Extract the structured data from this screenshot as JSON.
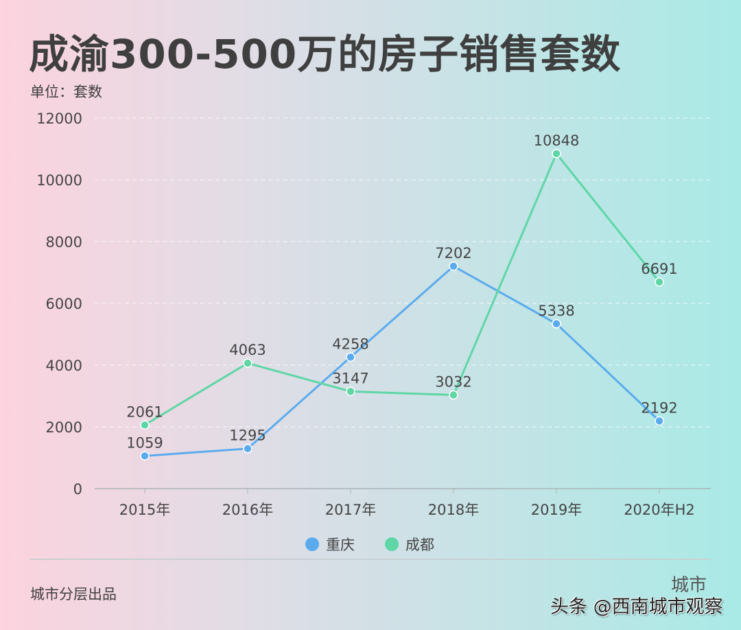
{
  "title": "成渝300-500万的房子销售套数",
  "unit_label": "单位：套数",
  "credit": "城市分层出品",
  "watermark": {
    "seal": "城市",
    "text": "头条 @西南城市观察"
  },
  "chart_data": {
    "type": "line",
    "title": "成渝300-500万的房子销售套数",
    "ylabel": "单位：套数",
    "categories": [
      "2015年",
      "2016年",
      "2017年",
      "2018年",
      "2019年",
      "2020年H2"
    ],
    "ylim": [
      0,
      12000
    ],
    "yticks": [
      0,
      2000,
      4000,
      6000,
      8000,
      10000,
      12000
    ],
    "grid": true,
    "legend_position": "bottom",
    "series": [
      {
        "name": "重庆",
        "color": "#5aabee",
        "values": [
          1059,
          1295,
          4258,
          7202,
          5338,
          2192
        ]
      },
      {
        "name": "成都",
        "color": "#5fd6a6",
        "values": [
          2061,
          4063,
          3147,
          3032,
          10848,
          6691
        ]
      }
    ]
  }
}
